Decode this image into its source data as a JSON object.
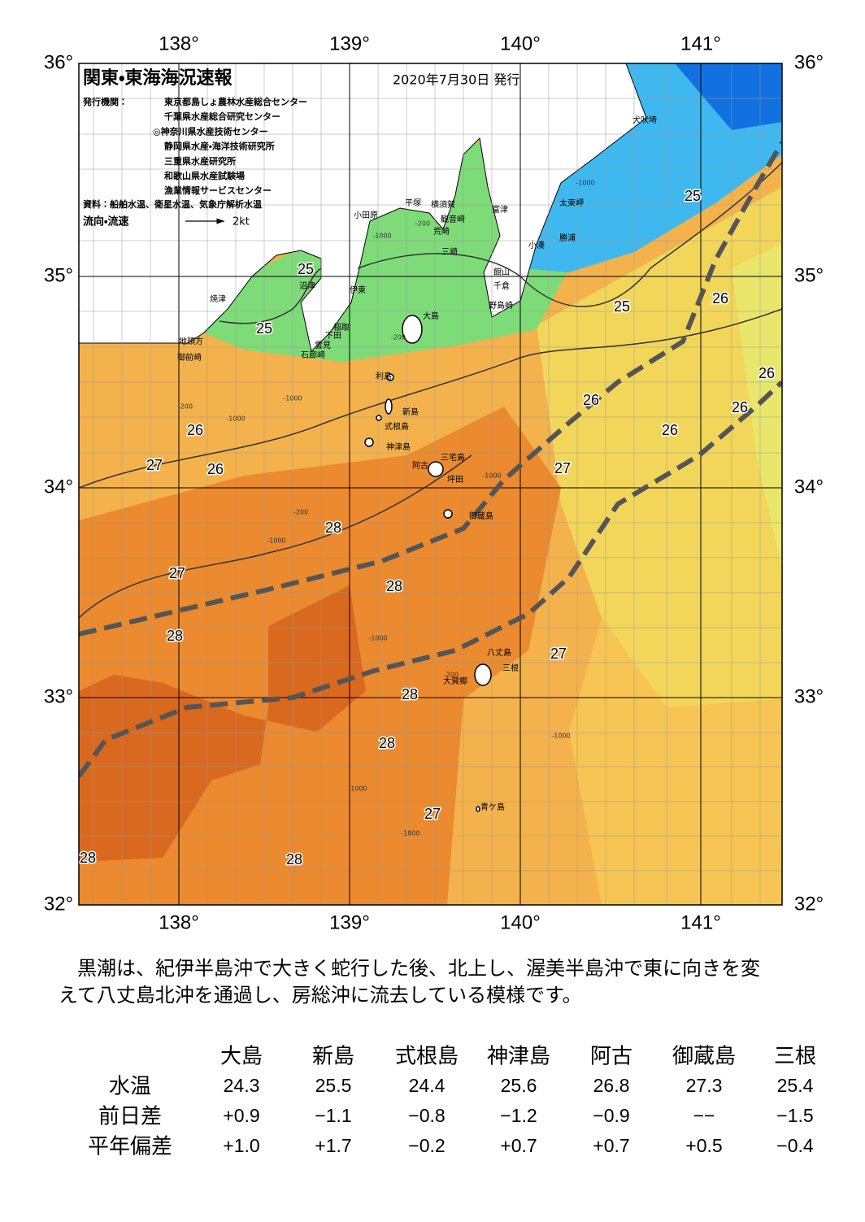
{
  "header": {
    "title": "関東・東海海況速報",
    "date": "2020年7月30日 発行"
  },
  "info": {
    "publisher_label": "発行機関：",
    "publishers": [
      "東京都島しょ農林水産総合センター",
      "千葉県水産総合研究センター",
      "◎神奈川県水産技術センター",
      "静岡県水産・海洋技術研究所",
      "三重県水産研究所",
      "和歌山県水産試験場",
      "漁業情報サービスセンター"
    ],
    "source": "資料：船舶水温、衛星水温、気象庁解析水温",
    "current_label": "流向・流速",
    "current_scale": "2kt"
  },
  "map": {
    "lon_ticks": [
      "138°",
      "139°",
      "140°",
      "141°"
    ],
    "lat_ticks": [
      "36°",
      "35°",
      "34°",
      "33°",
      "32°"
    ],
    "places": [
      "犬吠埼",
      "太東岬",
      "勝浦",
      "小湊",
      "富津",
      "横須賀",
      "平塚",
      "観音崎",
      "小田原",
      "荒崎",
      "三崎",
      "館山",
      "千倉",
      "野島崎",
      "沼津",
      "伊東",
      "焼津",
      "稲取",
      "下田",
      "雲見",
      "石廊崎",
      "地頭方",
      "御前崎",
      "大島",
      "利島",
      "新島",
      "式根島",
      "神津島",
      "三宅島",
      "阿古",
      "坪田",
      "御蔵島",
      "八丈島",
      "三根",
      "大賀郷",
      "青ケ島"
    ],
    "temp_labels": [
      "25",
      "25",
      "25",
      "25",
      "26",
      "26",
      "26",
      "26",
      "26",
      "26",
      "26",
      "27",
      "27",
      "27",
      "27",
      "27",
      "28",
      "28",
      "28",
      "28",
      "28",
      "28",
      "28"
    ],
    "depth_labels": [
      "-200",
      "-1000",
      "-200",
      "-1000",
      "-200",
      "-1000",
      "-200",
      "-1000",
      "-1000",
      "-1000",
      "-200",
      "-1000",
      "-1000",
      "-1000",
      "-1800"
    ]
  },
  "description": [
    "黒潮は、紀伊半島沖で大きく蛇行した後、北上し、渥美半島沖で東に向きを変",
    "えて八丈島北沖を通過し、房総沖に流去している模様です。"
  ],
  "table": {
    "columns": [
      "大島",
      "新島",
      "式根島",
      "神津島",
      "阿古",
      "御蔵島",
      "三根"
    ],
    "rows": [
      {
        "label": "水温",
        "values": [
          "24.3",
          "25.5",
          "24.4",
          "25.6",
          "26.8",
          "27.3",
          "25.4"
        ]
      },
      {
        "label": "前日差",
        "values": [
          "+0.9",
          "−1.1",
          "−0.8",
          "−1.2",
          "−0.9",
          "−−",
          "−1.5"
        ]
      },
      {
        "label": "平年偏差",
        "values": [
          "+1.0",
          "+1.7",
          "−0.2",
          "+0.7",
          "+0.7",
          "+0.5",
          "−0.4"
        ]
      }
    ]
  }
}
